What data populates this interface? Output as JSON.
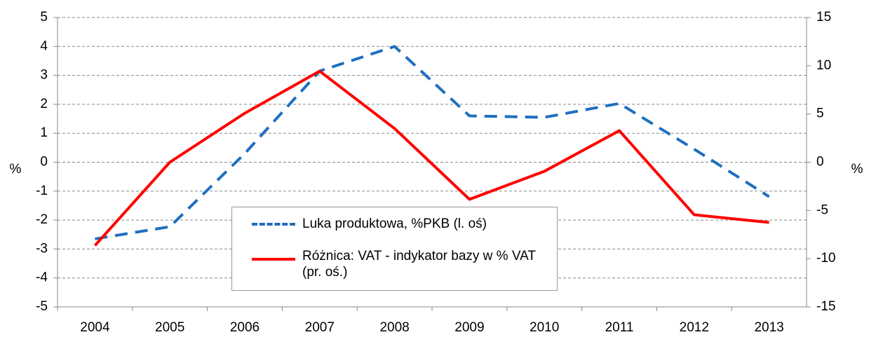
{
  "chart_data": {
    "type": "line",
    "categories": [
      "2004",
      "2005",
      "2006",
      "2007",
      "2008",
      "2009",
      "2010",
      "2011",
      "2012",
      "2013"
    ],
    "series": [
      {
        "name": "Luka produktowa, %PKB (l. oś)",
        "color": "#1f6fbf",
        "dash": true,
        "values": [
          -2.65,
          -2.23,
          0.3,
          3.15,
          4.0,
          1.6,
          1.55,
          2.03,
          0.45,
          -1.19
        ]
      },
      {
        "name": "Różnica: VAT - indykator bazy w % VAT (pr. oś.)",
        "color": "#ff0000",
        "axis": "y2",
        "values": [
          -8.64,
          0,
          5.08,
          9.44,
          3.49,
          -3.85,
          -0.94,
          3.27,
          -5.45,
          -6.25
        ]
      }
    ],
    "ylabel": "%",
    "y2label": "%",
    "ylim": [
      -5,
      5
    ],
    "yticks": [
      -5,
      -4,
      -3,
      -2,
      -1,
      0,
      1,
      2,
      3,
      4,
      5
    ],
    "y2lim": [
      -15,
      15
    ],
    "y2ticks": [
      -15,
      -10,
      -5,
      0,
      5,
      10,
      15
    ],
    "grid": true
  }
}
